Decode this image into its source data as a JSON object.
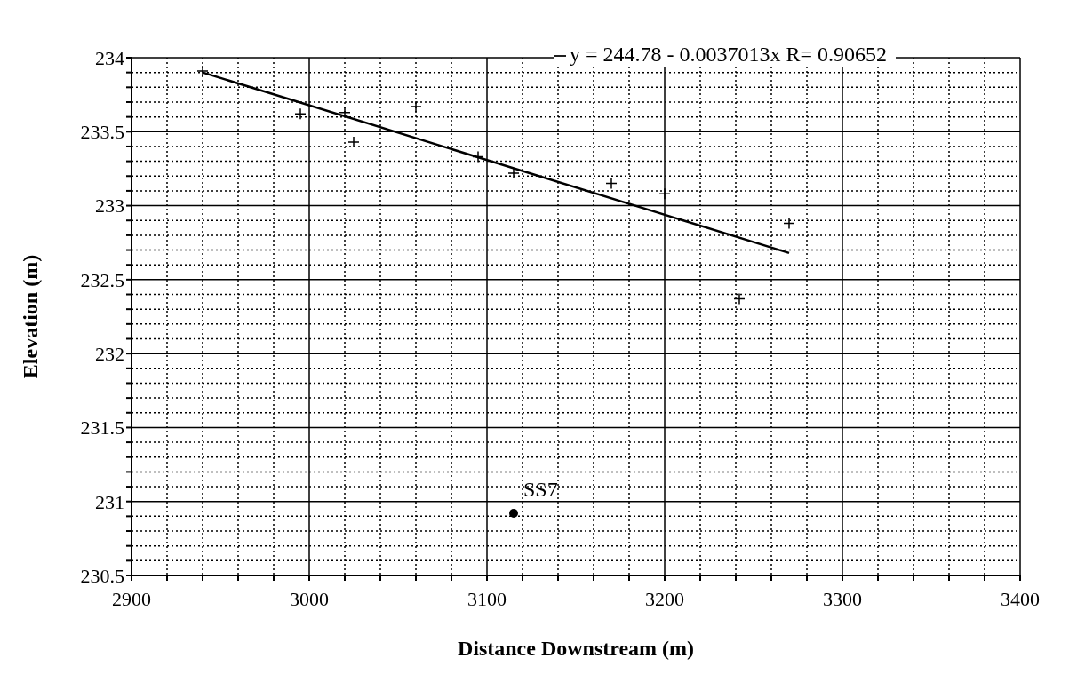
{
  "chart_data": {
    "type": "scatter",
    "xlabel": "Distance Downstream (m)",
    "ylabel": "Elevation (m)",
    "xlim": [
      2900,
      3400
    ],
    "ylim": [
      230.5,
      234
    ],
    "xticks": [
      2900,
      {
        "value": 2920,
        "label": null
      },
      {
        "value": 2940,
        "label": null
      },
      {
        "value": 2960,
        "label": null
      },
      {
        "value": 2980,
        "label": null
      },
      3000,
      {
        "value": 3020,
        "label": null
      },
      {
        "value": 3040,
        "label": null
      },
      {
        "value": 3060,
        "label": null
      },
      {
        "value": 3080,
        "label": null
      },
      3100,
      {
        "value": 3120,
        "label": null
      },
      {
        "value": 3140,
        "label": null
      },
      {
        "value": 3160,
        "label": null
      },
      {
        "value": 3180,
        "label": null
      },
      3200,
      {
        "value": 3220,
        "label": null
      },
      {
        "value": 3240,
        "label": null
      },
      {
        "value": 3260,
        "label": null
      },
      {
        "value": 3280,
        "label": null
      },
      3300,
      {
        "value": 3320,
        "label": null
      },
      {
        "value": 3340,
        "label": null
      },
      {
        "value": 3360,
        "label": null
      },
      {
        "value": 3380,
        "label": null
      },
      3400
    ],
    "yticks": [
      230.5,
      {
        "value": 230.6,
        "label": null
      },
      {
        "value": 230.7,
        "label": null
      },
      {
        "value": 230.8,
        "label": null
      },
      {
        "value": 230.9,
        "label": null
      },
      231,
      {
        "value": 231.1,
        "label": null
      },
      {
        "value": 231.2,
        "label": null
      },
      {
        "value": 231.3,
        "label": null
      },
      {
        "value": 231.4,
        "label": null
      },
      231.5,
      {
        "value": 231.6,
        "label": null
      },
      {
        "value": 231.7,
        "label": null
      },
      {
        "value": 231.8,
        "label": null
      },
      {
        "value": 231.9,
        "label": null
      },
      232,
      {
        "value": 232.1,
        "label": null
      },
      {
        "value": 232.2,
        "label": null
      },
      {
        "value": 232.3,
        "label": null
      },
      {
        "value": 232.4,
        "label": null
      },
      232.5,
      {
        "value": 232.6,
        "label": null
      },
      {
        "value": 232.7,
        "label": null
      },
      {
        "value": 232.8,
        "label": null
      },
      {
        "value": 232.9,
        "label": null
      },
      233,
      {
        "value": 233.1,
        "label": null
      },
      {
        "value": 233.2,
        "label": null
      },
      {
        "value": 233.3,
        "label": null
      },
      {
        "value": 233.4,
        "label": null
      },
      233.5,
      {
        "value": 233.6,
        "label": null
      },
      {
        "value": 233.7,
        "label": null
      },
      {
        "value": 233.8,
        "label": null
      },
      {
        "value": 233.9,
        "label": null
      },
      234
    ],
    "grid": true,
    "legend": "top right",
    "series": [
      {
        "marker": "cross",
        "color": "#000000",
        "x": [
          2940,
          2995,
          3020,
          3025,
          3060,
          3095,
          3115,
          3170,
          3200,
          3242,
          3270
        ],
        "values": [
          233.91,
          233.62,
          233.63,
          233.43,
          233.67,
          233.33,
          233.22,
          233.15,
          233.08,
          232.37,
          232.88
        ]
      },
      {
        "type": "line",
        "name": "y = 244.78 - 0.0037013x R= 0.90652",
        "color": "#000000",
        "marker": "none",
        "line_style": "solid",
        "x": [
          2940,
          3270
        ],
        "values": [
          233.9,
          232.68
        ]
      },
      {
        "marker": "circle",
        "color": "#000000",
        "x": [
          3115
        ],
        "values": [
          230.92
        ]
      }
    ],
    "annotations": [
      {
        "text": "SS7",
        "x": 3115,
        "y": 230.92
      }
    ]
  }
}
